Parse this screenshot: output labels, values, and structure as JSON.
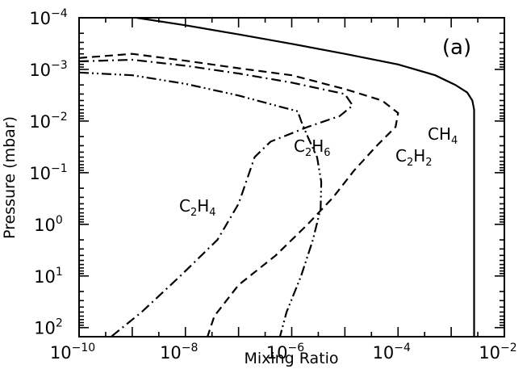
{
  "chart_data": {
    "type": "line",
    "panel_label": "(a)",
    "xlabel": "Mixing Ratio",
    "ylabel": "Pressure (mbar)",
    "xscale": "log",
    "yscale": "log",
    "yaxis_inverted": true,
    "xlim": [
      1e-10,
      0.01
    ],
    "ylim": [
      0.0001,
      150
    ],
    "x_ticks": [
      {
        "value": 1e-10,
        "base": "10",
        "exp": "−10"
      },
      {
        "value": 1e-08,
        "base": "10",
        "exp": "−8"
      },
      {
        "value": 1e-06,
        "base": "10",
        "exp": "−6"
      },
      {
        "value": 0.0001,
        "base": "10",
        "exp": "−4"
      },
      {
        "value": 0.01,
        "base": "10",
        "exp": "−2"
      }
    ],
    "y_ticks": [
      {
        "value": 0.0001,
        "base": "10",
        "exp": "−4"
      },
      {
        "value": 0.001,
        "base": "10",
        "exp": "−3"
      },
      {
        "value": 0.01,
        "base": "10",
        "exp": "−2"
      },
      {
        "value": 0.1,
        "base": "10",
        "exp": "−1"
      },
      {
        "value": 1,
        "base": "10",
        "exp": "0"
      },
      {
        "value": 10,
        "base": "10",
        "exp": "1"
      },
      {
        "value": 100,
        "base": "10",
        "exp": "2"
      }
    ],
    "series": [
      {
        "label_main": "CH",
        "label_sub": "4",
        "style": "solid",
        "points": [
          [
            1.2e-09,
            0.0001
          ],
          [
            1e-08,
            0.00014
          ],
          [
            1e-07,
            0.00021
          ],
          [
            1e-06,
            0.00032
          ],
          [
            1e-05,
            0.0005
          ],
          [
            0.0001,
            0.0008
          ],
          [
            0.0005,
            0.0013
          ],
          [
            0.0012,
            0.002
          ],
          [
            0.002,
            0.0028
          ],
          [
            0.0025,
            0.004
          ],
          [
            0.0027,
            0.006
          ],
          [
            0.0027,
            0.01
          ],
          [
            0.0027,
            100
          ],
          [
            0.0027,
            150
          ]
        ]
      },
      {
        "label_main": "C",
        "label_sub": "2",
        "label_main2": "H",
        "label_sub2": "2",
        "style": "dashed",
        "points": [
          [
            1e-10,
            0.0006
          ],
          [
            1e-09,
            0.0005
          ],
          [
            1e-08,
            0.00068
          ],
          [
            1e-07,
            0.00095
          ],
          [
            1e-06,
            0.0013
          ],
          [
            1e-05,
            0.0024
          ],
          [
            5e-05,
            0.004
          ],
          [
            0.0001,
            0.007
          ],
          [
            9e-05,
            0.013
          ],
          [
            4e-05,
            0.03
          ],
          [
            1.5e-05,
            0.09
          ],
          [
            6e-06,
            0.3
          ],
          [
            2e-06,
            1
          ],
          [
            5e-07,
            4
          ],
          [
            1e-07,
            15
          ],
          [
            3.5e-08,
            60
          ],
          [
            2.6e-08,
            150
          ]
        ]
      },
      {
        "label_main": "C",
        "label_sub": "2",
        "label_main2": "H",
        "label_sub2": "6",
        "style": "dashdotdot",
        "points": [
          [
            1e-10,
            0.00115
          ],
          [
            1e-09,
            0.0013
          ],
          [
            1e-08,
            0.0019
          ],
          [
            1e-07,
            0.0032
          ],
          [
            5e-07,
            0.005
          ],
          [
            1.3e-06,
            0.0065
          ],
          [
            1.5e-06,
            0.01
          ],
          [
            2e-06,
            0.02
          ],
          [
            3e-06,
            0.05
          ],
          [
            3.6e-06,
            0.15
          ],
          [
            3.5e-06,
            0.5
          ],
          [
            2.5e-06,
            2
          ],
          [
            1.5e-06,
            10
          ],
          [
            8e-07,
            50
          ],
          [
            6e-07,
            150
          ]
        ]
      },
      {
        "label_main": "C",
        "label_sub": "2",
        "label_main2": "H",
        "label_sub2": "4",
        "style": "dashdot",
        "points": [
          [
            1e-10,
            0.0007
          ],
          [
            1e-09,
            0.00065
          ],
          [
            1e-08,
            0.00085
          ],
          [
            1e-07,
            0.0012
          ],
          [
            1e-06,
            0.0018
          ],
          [
            1e-05,
            0.003
          ],
          [
            1.4e-05,
            0.005
          ],
          [
            8e-06,
            0.008
          ],
          [
            2e-06,
            0.013
          ],
          [
            4e-07,
            0.025
          ],
          [
            2e-07,
            0.05
          ],
          [
            1.5e-07,
            0.12
          ],
          [
            1e-07,
            0.4
          ],
          [
            4e-08,
            2
          ],
          [
            8e-09,
            10
          ],
          [
            1.5e-09,
            50
          ],
          [
            4e-10,
            150
          ]
        ]
      }
    ]
  }
}
